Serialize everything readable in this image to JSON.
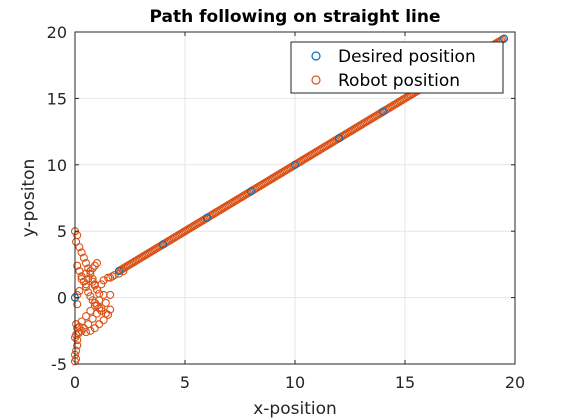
{
  "chart_data": {
    "type": "scatter",
    "title": "Path following on straight line",
    "xlabel": "x-position",
    "ylabel": "y-positon",
    "xlim": [
      0,
      20
    ],
    "ylim": [
      -5,
      20
    ],
    "xticks": [
      "0",
      "5",
      "10",
      "15",
      "20"
    ],
    "yticks": [
      "-5",
      "0",
      "5",
      "10",
      "15",
      "20"
    ],
    "grid": true,
    "legend_position": "top-right",
    "series": [
      {
        "name": "Desired position",
        "color": "#0072BD",
        "marker": "circle-open",
        "x": [
          0.0,
          2.0,
          4.0,
          6.0,
          8.0,
          10.0,
          12.0,
          14.0,
          16.0,
          18.0,
          19.5
        ],
        "y": [
          0.0,
          2.0,
          4.0,
          6.0,
          8.0,
          10.0,
          12.0,
          14.0,
          16.0,
          18.0,
          19.5
        ]
      },
      {
        "name": "Robot position",
        "color": "#D95319",
        "marker": "circle-open",
        "x": [
          0.0,
          0.1,
          0.05,
          0.2,
          0.3,
          0.4,
          0.5,
          0.6,
          0.7,
          0.8,
          0.9,
          1.0,
          0.1,
          0.2,
          0.3,
          0.4,
          0.5,
          0.6,
          0.7,
          0.8,
          0.9,
          1.0,
          1.1,
          1.2,
          1.4,
          0.05,
          0.1,
          0.3,
          0.5,
          0.7,
          0.9,
          1.1,
          1.3,
          1.5,
          1.6,
          0.0,
          0.05,
          0.2,
          0.4,
          0.6,
          0.8,
          1.0,
          1.2,
          1.4,
          1.6,
          0.0,
          0.05,
          0.1,
          0.1,
          0.15,
          0.2,
          0.3,
          0.5,
          0.7,
          0.9,
          1.1,
          0.3,
          0.5,
          0.7,
          0.8,
          0.9,
          1.0,
          1.2,
          1.3,
          1.5,
          1.6,
          1.7,
          1.8,
          2.0,
          2.2,
          0.1,
          0.2,
          0.5,
          0.6,
          0.8,
          0.9,
          1.0,
          1.1,
          1.3,
          0.0,
          0.05,
          0.1,
          0.0
        ],
        "y": [
          5.0,
          4.7,
          4.2,
          3.8,
          3.4,
          3.0,
          2.6,
          2.2,
          1.8,
          1.4,
          1.0,
          0.6,
          2.4,
          2.0,
          1.6,
          1.2,
          0.8,
          0.4,
          0.1,
          -0.2,
          -0.4,
          -0.6,
          -0.8,
          -1.0,
          -1.2,
          -2.0,
          -2.3,
          -2.5,
          -2.6,
          -2.5,
          -2.3,
          -2.0,
          -1.7,
          -1.3,
          -0.9,
          -3.0,
          -2.8,
          -2.6,
          -2.3,
          -2.0,
          -1.6,
          -1.2,
          -0.8,
          -0.4,
          0.2,
          -4.3,
          -4.0,
          -3.6,
          -3.2,
          -2.7,
          -2.2,
          -1.8,
          -1.4,
          -1.0,
          -0.6,
          -0.2,
          1.4,
          1.8,
          2.0,
          2.2,
          2.4,
          2.6,
          1.0,
          1.3,
          1.5,
          1.5,
          1.6,
          1.7,
          1.8,
          2.0,
          0.2,
          0.5,
          1.0,
          1.4,
          1.2,
          0.9,
          0.6,
          0.3,
          0.2,
          -4.8,
          -4.6,
          -0.5,
          0.0
        ],
        "line_x": [
          2.0,
          19.5
        ],
        "line_y": [
          2.0,
          19.5
        ]
      }
    ]
  }
}
